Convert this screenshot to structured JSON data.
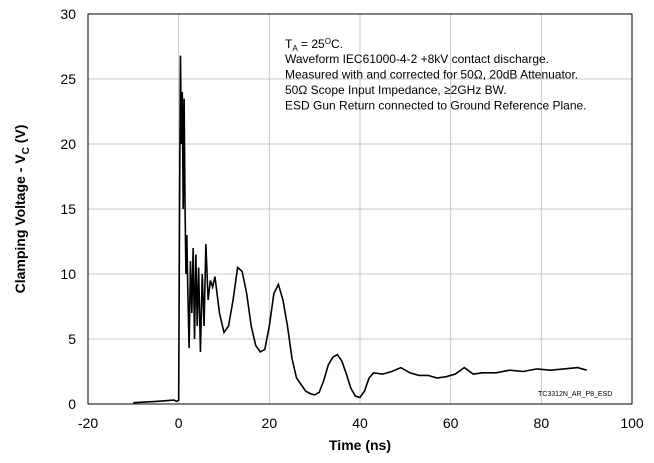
{
  "chart_data": {
    "type": "line",
    "x_label": "Time (ns)",
    "y_label": [
      "Clamping Voltage  - V",
      "C",
      " (V)"
    ],
    "annotation_first": [
      "T",
      "A",
      " = 25",
      "O",
      "C."
    ],
    "annotation_lines": [
      "Waveform IEC61000-4-2 +8kV contact discharge.",
      "Measured with and corrected for 50Ω, 20dB Attenuator.",
      "50Ω Scope Input Impedance, ≥2GHz BW.",
      "ESD Gun Return connected to Ground Reference Plane."
    ],
    "watermark": "TC3312N_AR_P8_ESD",
    "color": "#000000",
    "grid": true,
    "xlim": [
      -20,
      100
    ],
    "xticks": [
      -20,
      0,
      20,
      40,
      60,
      80,
      100
    ],
    "ylim": [
      0,
      30
    ],
    "yticks": [
      0,
      5,
      10,
      15,
      20,
      25,
      30
    ],
    "x": [
      -10,
      -5,
      -1,
      -0.5,
      0,
      0.2,
      0.4,
      0.6,
      0.8,
      1.0,
      1.2,
      1.4,
      1.6,
      1.8,
      2,
      2.3,
      2.6,
      2.9,
      3.2,
      3.5,
      3.8,
      4.1,
      4.4,
      4.8,
      5.2,
      5.6,
      6,
      6.5,
      7,
      7.5,
      8,
      9,
      10,
      11,
      12,
      13,
      14,
      15,
      16,
      17,
      18,
      19,
      20,
      21,
      22,
      23,
      24,
      25,
      26,
      27,
      28,
      29,
      30,
      31,
      32,
      33,
      34,
      35,
      36,
      37,
      38,
      39,
      40,
      41,
      42,
      43,
      45,
      47,
      49,
      51,
      53,
      55,
      57,
      59,
      61,
      63,
      65,
      67,
      70,
      73,
      76,
      79,
      82,
      85,
      88,
      90
    ],
    "values": [
      0.1,
      0.2,
      0.3,
      0.2,
      0.3,
      15,
      26.8,
      20,
      24,
      15,
      23.5,
      15.5,
      10,
      13,
      9,
      4.3,
      11,
      7,
      12,
      5,
      11.5,
      6,
      10.5,
      4,
      10,
      6,
      12.3,
      8,
      9.5,
      9,
      9.8,
      7,
      5.5,
      6,
      8,
      10.5,
      10.2,
      8.5,
      6,
      4.5,
      4,
      4.2,
      6,
      8.5,
      9.2,
      8,
      6,
      3.5,
      2,
      1.5,
      1.0,
      0.8,
      0.7,
      0.9,
      1.8,
      3,
      3.6,
      3.8,
      3.3,
      2.3,
      1.2,
      0.6,
      0.5,
      1.0,
      2.0,
      2.4,
      2.3,
      2.5,
      2.8,
      2.4,
      2.2,
      2.2,
      2.0,
      2.1,
      2.3,
      2.8,
      2.3,
      2.4,
      2.4,
      2.6,
      2.5,
      2.7,
      2.6,
      2.7,
      2.8,
      2.6
    ]
  }
}
